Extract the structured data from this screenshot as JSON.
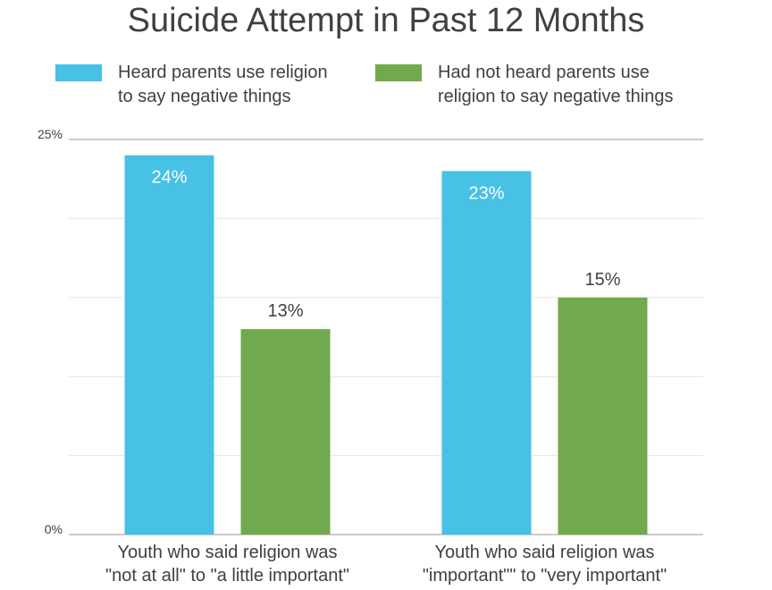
{
  "chart_data": {
    "type": "bar",
    "title": "Suicide Attempt in Past 12 Months",
    "categories": [
      [
        "Youth who said religion was",
        "\"not at all\" to \"a little important\""
      ],
      [
        "Youth who said religion was",
        "\"important\"\" to \"very important\""
      ]
    ],
    "series": [
      {
        "name_lines": [
          "Heard parents use religion",
          "to say negative things"
        ],
        "color": "#47C1E4",
        "values": [
          24,
          23
        ],
        "labels": [
          "24%",
          "23%"
        ],
        "label_color": "#ffffff",
        "label_position": "inside"
      },
      {
        "name_lines": [
          "Had not heard parents use",
          "religion to say negative things"
        ],
        "color": "#71A94E",
        "values": [
          13,
          15
        ],
        "labels": [
          "13%",
          "15%"
        ],
        "label_color": "#404040",
        "label_position": "above"
      }
    ],
    "ylim": [
      0,
      25
    ],
    "yticks": [
      "0%",
      "25%"
    ],
    "grid": true,
    "legend_position": "top"
  }
}
